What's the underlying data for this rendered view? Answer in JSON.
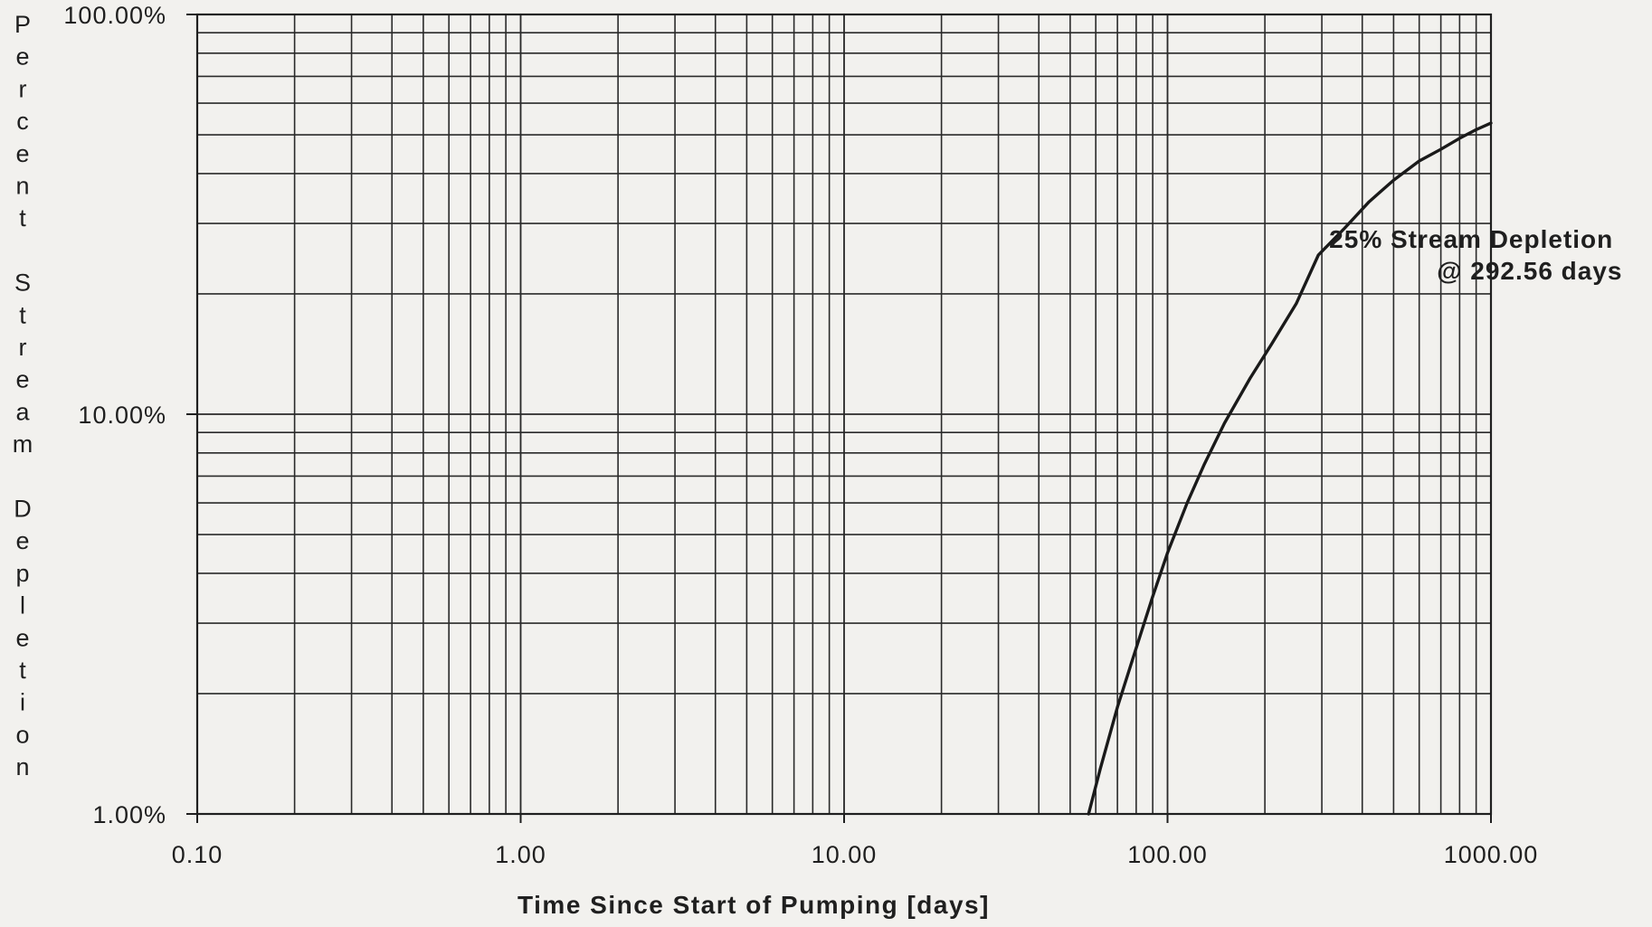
{
  "chart_data": {
    "type": "line",
    "title": "",
    "xlabel": "Time Since Start of Pumping [days]",
    "ylabel": "Percent Stream Depletion",
    "xscale": "log",
    "yscale": "log",
    "xlim": [
      0.1,
      1000
    ],
    "ylim": [
      1,
      100
    ],
    "grid": true,
    "x_tick_labels": [
      "0.10",
      "1.00",
      "10.00",
      "100.00",
      "1000.00"
    ],
    "x_tick_values": [
      0.1,
      1,
      10,
      100,
      1000
    ],
    "y_tick_labels": [
      "1.00%",
      "10.00%",
      "100.00%"
    ],
    "y_tick_values": [
      1,
      10,
      100
    ],
    "series": [
      {
        "x": [
          57,
          62,
          70,
          80,
          90,
          100,
          115,
          130,
          150,
          180,
          210,
          250,
          292.56,
          350,
          420,
          500,
          600,
          700,
          800,
          900,
          1000
        ],
        "y": [
          1.0,
          1.3,
          1.85,
          2.6,
          3.5,
          4.5,
          6.0,
          7.5,
          9.5,
          12.3,
          15.0,
          18.9,
          25.0,
          29.0,
          34.0,
          38.5,
          43.0,
          46.0,
          49.0,
          51.5,
          53.5
        ]
      }
    ],
    "annotations": [
      {
        "line1": "25% Stream Depletion",
        "line2": "@ 292.56 days",
        "x": 292.56,
        "y": 25
      }
    ],
    "legend": "none"
  }
}
